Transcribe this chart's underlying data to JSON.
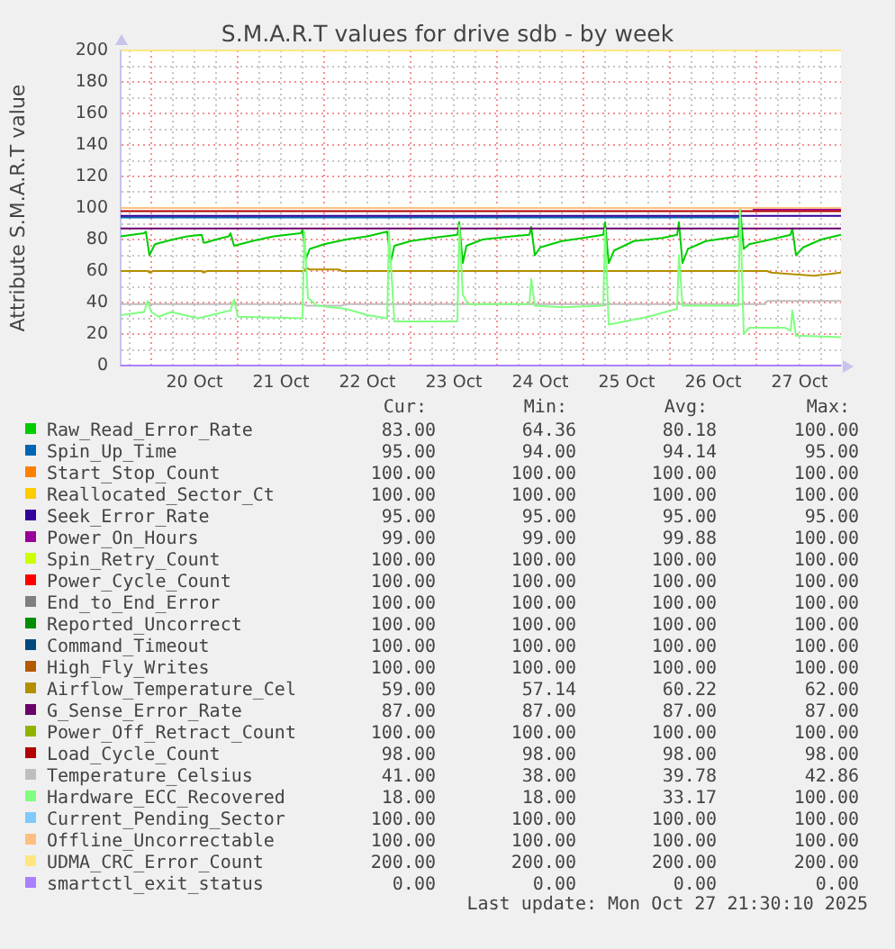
{
  "chart_data": {
    "type": "line",
    "title": "S.M.A.R.T values for drive sdb - by week",
    "ylabel": "Attribute S.M.A.R.T value",
    "xlim": [
      "2025-10-19T15:30",
      "2025-10-27T23:30"
    ],
    "xticks": [
      {
        "value": "2025-10-19T18:00",
        "label": null
      },
      {
        "value": "2025-10-20T00:00",
        "label": null
      },
      {
        "value": "2025-10-20T06:00",
        "label": null
      },
      {
        "value": "2025-10-20T12:00",
        "label": "20 Oct"
      },
      {
        "value": "2025-10-20T18:00",
        "label": null
      },
      {
        "value": "2025-10-21T00:00",
        "label": null
      },
      {
        "value": "2025-10-21T06:00",
        "label": null
      },
      {
        "value": "2025-10-21T12:00",
        "label": "21 Oct"
      },
      {
        "value": "2025-10-21T18:00",
        "label": null
      },
      {
        "value": "2025-10-22T00:00",
        "label": null
      },
      {
        "value": "2025-10-22T06:00",
        "label": null
      },
      {
        "value": "2025-10-22T12:00",
        "label": "22 Oct"
      },
      {
        "value": "2025-10-22T18:00",
        "label": null
      },
      {
        "value": "2025-10-23T00:00",
        "label": null
      },
      {
        "value": "2025-10-23T06:00",
        "label": null
      },
      {
        "value": "2025-10-23T12:00",
        "label": "23 Oct"
      },
      {
        "value": "2025-10-23T18:00",
        "label": null
      },
      {
        "value": "2025-10-24T00:00",
        "label": null
      },
      {
        "value": "2025-10-24T06:00",
        "label": null
      },
      {
        "value": "2025-10-24T12:00",
        "label": "24 Oct"
      },
      {
        "value": "2025-10-24T18:00",
        "label": null
      },
      {
        "value": "2025-10-25T00:00",
        "label": null
      },
      {
        "value": "2025-10-25T06:00",
        "label": null
      },
      {
        "value": "2025-10-25T12:00",
        "label": "25 Oct"
      },
      {
        "value": "2025-10-25T18:00",
        "label": null
      },
      {
        "value": "2025-10-26T00:00",
        "label": null
      },
      {
        "value": "2025-10-26T06:00",
        "label": null
      },
      {
        "value": "2025-10-26T12:00",
        "label": "26 Oct"
      },
      {
        "value": "2025-10-26T18:00",
        "label": null
      },
      {
        "value": "2025-10-27T00:00",
        "label": null
      },
      {
        "value": "2025-10-27T06:00",
        "label": null
      },
      {
        "value": "2025-10-27T12:00",
        "label": "27 Oct"
      },
      {
        "value": "2025-10-27T18:00",
        "label": null
      }
    ],
    "ylim": [
      0,
      200
    ],
    "yticks": [
      0,
      {
        "value": 10,
        "label": null
      },
      20,
      {
        "value": 30,
        "label": null
      },
      40,
      {
        "value": 50,
        "label": null
      },
      60,
      {
        "value": 70,
        "label": null
      },
      80,
      {
        "value": 90,
        "label": null
      },
      100,
      {
        "value": 110,
        "label": null
      },
      120,
      {
        "value": 130,
        "label": null
      },
      140,
      {
        "value": 150,
        "label": null
      },
      160,
      {
        "value": 170,
        "label": null
      },
      180,
      {
        "value": 190,
        "label": null
      },
      200
    ],
    "grid": true,
    "legend": "bottom",
    "marker": "none",
    "series": [
      {
        "name": "Raw_Read_Error_Rate",
        "color": "#00cc00",
        "x": [
          "2025-10-19T15:30",
          "2025-10-19T22:00",
          "2025-10-19T22:30",
          "2025-10-19T23:30",
          "2025-10-20T01:00",
          "2025-10-20T06:00",
          "2025-10-20T10:00",
          "2025-10-20T14:00",
          "2025-10-20T14:30",
          "2025-10-20T15:00",
          "2025-10-20T18:00",
          "2025-10-20T21:30",
          "2025-10-20T22:00",
          "2025-10-20T23:00",
          "2025-10-21T04:00",
          "2025-10-21T10:00",
          "2025-10-21T17:30",
          "2025-10-21T18:00",
          "2025-10-21T19:00",
          "2025-10-21T20:00",
          "2025-10-22T00:00",
          "2025-10-22T06:00",
          "2025-10-22T12:00",
          "2025-10-22T17:30",
          "2025-10-22T18:30",
          "2025-10-22T19:30",
          "2025-10-23T00:00",
          "2025-10-23T06:00",
          "2025-10-23T13:00",
          "2025-10-23T13:30",
          "2025-10-23T14:30",
          "2025-10-23T15:30",
          "2025-10-23T20:00",
          "2025-10-24T04:00",
          "2025-10-24T09:00",
          "2025-10-24T09:30",
          "2025-10-24T10:30",
          "2025-10-24T12:00",
          "2025-10-24T18:00",
          "2025-10-25T00:00",
          "2025-10-25T05:30",
          "2025-10-25T06:00",
          "2025-10-25T07:00",
          "2025-10-25T08:30",
          "2025-10-25T14:00",
          "2025-10-25T22:00",
          "2025-10-26T02:00",
          "2025-10-26T02:30",
          "2025-10-26T03:30",
          "2025-10-26T05:00",
          "2025-10-26T10:00",
          "2025-10-26T16:00",
          "2025-10-26T19:00",
          "2025-10-26T19:30",
          "2025-10-26T20:30",
          "2025-10-26T22:00",
          "2025-10-27T04:00",
          "2025-10-27T09:30",
          "2025-10-27T10:00",
          "2025-10-27T11:00",
          "2025-10-27T13:00",
          "2025-10-27T18:00",
          "2025-10-27T23:30"
        ],
        "values": [
          82,
          84,
          85,
          70,
          77,
          80,
          82,
          83,
          78,
          78,
          80,
          82,
          84,
          76,
          79,
          82,
          84,
          86,
          68,
          74,
          77,
          80,
          82,
          85,
          66,
          76,
          79,
          81,
          83,
          91,
          65,
          76,
          80,
          82,
          83,
          88,
          70,
          75,
          79,
          81,
          83,
          91,
          65,
          73,
          79,
          81,
          83,
          91,
          65,
          74,
          79,
          81,
          82,
          100,
          74,
          77,
          80,
          83,
          87,
          70,
          75,
          80,
          83
        ]
      },
      {
        "name": "Spin_Up_Time",
        "color": "#0066b3",
        "x": [
          "2025-10-19T15:30",
          "2025-10-26T19:30"
        ],
        "values": [
          94,
          94
        ]
      },
      {
        "name": "Start_Stop_Count",
        "color": "#ff8000"
      },
      {
        "name": "Reallocated_Sector_Ct",
        "color": "#ffcc00"
      },
      {
        "name": "Seek_Error_Rate",
        "color": "#330099",
        "x": [
          "2025-10-19T15:30",
          "2025-10-27T23:30"
        ],
        "values": [
          95,
          95
        ]
      },
      {
        "name": "Power_On_Hours",
        "color": "#990099",
        "x": [
          "2025-10-26T23:00",
          "2025-10-27T23:30"
        ],
        "values": [
          99,
          99
        ]
      },
      {
        "name": "Spin_Retry_Count",
        "color": "#ccff00"
      },
      {
        "name": "Power_Cycle_Count",
        "color": "#ff0000"
      },
      {
        "name": "End_to_End_Error",
        "color": "#808080"
      },
      {
        "name": "Reported_Uncorrect",
        "color": "#008f00"
      },
      {
        "name": "Command_Timeout",
        "color": "#00487d"
      },
      {
        "name": "High_Fly_Writes",
        "color": "#b35a00"
      },
      {
        "name": "Airflow_Temperature_Cel",
        "color": "#b38f00",
        "x": [
          "2025-10-19T15:30",
          "2025-10-19T23:00",
          "2025-10-19T23:30",
          "2025-10-20T00:30",
          "2025-10-20T14:00",
          "2025-10-20T14:30",
          "2025-10-20T15:30",
          "2025-10-21T18:30",
          "2025-10-21T19:00",
          "2025-10-21T20:00",
          "2025-10-22T04:00",
          "2025-10-22T05:00",
          "2025-10-27T03:00",
          "2025-10-27T04:00",
          "2025-10-27T10:00",
          "2025-10-27T16:00",
          "2025-10-27T20:00",
          "2025-10-27T23:30"
        ],
        "values": [
          60,
          60,
          59,
          60,
          60,
          59,
          60,
          60,
          62,
          61,
          61,
          60,
          60,
          59,
          58,
          57,
          58,
          59
        ]
      },
      {
        "name": "G_Sense_Error_Rate",
        "color": "#6b006b",
        "x": [
          "2025-10-19T15:30",
          "2025-10-27T23:30"
        ],
        "values": [
          87,
          87
        ]
      },
      {
        "name": "Power_Off_Retract_Count",
        "color": "#8fb300"
      },
      {
        "name": "Load_Cycle_Count",
        "color": "#b30000",
        "x": [
          "2025-10-19T15:30",
          "2025-10-27T23:30"
        ],
        "values": [
          98,
          98
        ]
      },
      {
        "name": "Temperature_Celsius",
        "color": "#bebebe",
        "x": [
          "2025-10-19T15:30",
          "2025-10-21T18:30",
          "2025-10-21T19:00",
          "2025-10-22T05:00",
          "2025-10-22T05:30",
          "2025-10-27T02:30",
          "2025-10-27T03:00",
          "2025-10-27T23:30"
        ],
        "values": [
          39,
          39,
          38,
          38,
          39,
          39,
          41,
          41
        ]
      },
      {
        "name": "Hardware_ECC_Recovered",
        "color": "#80ff80",
        "x": [
          "2025-10-19T15:30",
          "2025-10-19T22:00",
          "2025-10-19T23:00",
          "2025-10-20T00:00",
          "2025-10-20T02:00",
          "2025-10-20T05:30",
          "2025-10-20T13:00",
          "2025-10-20T22:00",
          "2025-10-20T23:00",
          "2025-10-21T00:00",
          "2025-10-21T18:00",
          "2025-10-21T18:30",
          "2025-10-21T19:30",
          "2025-10-21T22:00",
          "2025-10-22T06:00",
          "2025-10-22T12:00",
          "2025-10-22T17:30",
          "2025-10-22T18:00",
          "2025-10-22T19:30",
          "2025-10-23T13:00",
          "2025-10-23T13:30",
          "2025-10-23T14:30",
          "2025-10-23T16:00",
          "2025-10-24T09:00",
          "2025-10-24T09:30",
          "2025-10-24T10:30",
          "2025-10-24T18:00",
          "2025-10-25T05:30",
          "2025-10-25T06:00",
          "2025-10-25T07:00",
          "2025-10-25T18:00",
          "2025-10-26T02:00",
          "2025-10-26T02:30",
          "2025-10-26T03:30",
          "2025-10-26T19:00",
          "2025-10-26T19:30",
          "2025-10-26T20:30",
          "2025-10-26T22:00",
          "2025-10-27T08:00",
          "2025-10-27T09:30",
          "2025-10-27T10:00",
          "2025-10-27T11:00",
          "2025-10-27T23:30"
        ],
        "values": [
          32,
          34,
          41,
          34,
          31,
          34,
          30,
          35,
          42,
          31,
          30,
          85,
          43,
          38,
          36,
          32,
          30,
          85,
          28,
          28,
          89,
          45,
          39,
          39,
          55,
          38,
          37,
          38,
          87,
          26,
          31,
          36,
          70,
          38,
          38,
          100,
          20,
          24,
          24,
          22,
          35,
          19,
          18
        ]
      },
      {
        "name": "Current_Pending_Sector",
        "color": "#80c9ff"
      },
      {
        "name": "Offline_Uncorrectable",
        "color": "#ffc080",
        "x": [
          "2025-10-19T15:30",
          "2025-10-27T23:30"
        ],
        "values": [
          100,
          100
        ]
      },
      {
        "name": "UDMA_CRC_Error_Count",
        "color": "#ffe680",
        "x": [
          "2025-10-19T15:30",
          "2025-10-27T23:30"
        ],
        "values": [
          200,
          200
        ]
      },
      {
        "name": "smartctl_exit_status",
        "color": "#aa80ff",
        "x": [
          "2025-10-19T15:30",
          "2025-10-27T23:30"
        ],
        "values": [
          0,
          0
        ]
      }
    ],
    "annotations": [
      "Cur:",
      "Min:",
      "Avg:",
      "Max:",
      "83.00",
      "64.36",
      "80.18",
      "100.00",
      "95.00",
      "94.00",
      "94.14",
      "95.00",
      "100.00",
      "100.00",
      "100.00",
      "100.00",
      "100.00",
      "100.00",
      "100.00",
      "100.00",
      "95.00",
      "95.00",
      "95.00",
      "95.00",
      "99.00",
      "99.00",
      "99.88",
      "100.00",
      "100.00",
      "100.00",
      "100.00",
      "100.00",
      "100.00",
      "100.00",
      "100.00",
      "100.00",
      "100.00",
      "100.00",
      "100.00",
      "100.00",
      "100.00",
      "100.00",
      "100.00",
      "100.00",
      "100.00",
      "100.00",
      "100.00",
      "100.00",
      "100.00",
      "100.00",
      "100.00",
      "100.00",
      "59.00",
      "57.14",
      "60.22",
      "62.00",
      "87.00",
      "87.00",
      "87.00",
      "87.00",
      "100.00",
      "100.00",
      "100.00",
      "100.00",
      "98.00",
      "98.00",
      "98.00",
      "98.00",
      "41.00",
      "38.00",
      "39.78",
      "42.86",
      "18.00",
      "18.00",
      "33.17",
      "100.00",
      "100.00",
      "100.00",
      "100.00",
      "100.00",
      "100.00",
      "100.00",
      "100.00",
      "100.00",
      "200.00",
      "200.00",
      "200.00",
      "200.00",
      "0.00",
      "0.00",
      "0.00",
      "0.00",
      "Last update: Mon Oct 27 21:30:10 2025"
    ]
  }
}
